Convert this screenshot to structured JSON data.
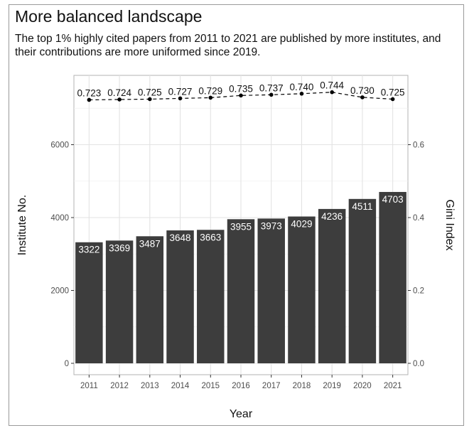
{
  "header": {
    "title": "More balanced landscape",
    "subtitle": "The top 1% highly cited papers from 2011 to 2021 are published by more institutes, and their contributions are more uniformed since 2019."
  },
  "chart_data": {
    "type": "bar",
    "title": "More balanced landscape",
    "subtitle": "The top 1% highly cited papers from 2011 to 2021 are published by more institutes, and their contributions are more uniformed since 2019.",
    "xlabel": "Year",
    "ylabel": "Institute No.",
    "y2label": "Gini Index",
    "categories": [
      "2011",
      "2012",
      "2013",
      "2014",
      "2015",
      "2016",
      "2017",
      "2018",
      "2019",
      "2020",
      "2021"
    ],
    "series": [
      {
        "type": "bar",
        "axis": "left",
        "values": [
          3322,
          3369,
          3487,
          3648,
          3663,
          3955,
          3973,
          4029,
          4236,
          4511,
          4703
        ],
        "labels": [
          "3322",
          "3369",
          "3487",
          "3648",
          "3663",
          "3955",
          "3973",
          "4029",
          "4236",
          "4511",
          "4703"
        ],
        "color": "#3d3d3d"
      },
      {
        "type": "line",
        "axis": "right",
        "style": "dashed",
        "values": [
          0.723,
          0.724,
          0.725,
          0.727,
          0.729,
          0.735,
          0.737,
          0.74,
          0.744,
          0.73,
          0.725
        ],
        "labels": [
          "0.723",
          "0.724",
          "0.725",
          "0.727",
          "0.729",
          "0.735",
          "0.737",
          "0.740",
          "0.744",
          "0.730",
          "0.725"
        ],
        "color": "#000000"
      }
    ],
    "ylim": [
      0,
      7600
    ],
    "y2lim": [
      0,
      0.76
    ],
    "yticks": [
      "0",
      "2000",
      "4000",
      "6000"
    ],
    "yticks_values": [
      0,
      2000,
      4000,
      6000
    ],
    "y2ticks": [
      "0.0",
      "0.2",
      "0.4",
      "0.6"
    ],
    "y2ticks_values": [
      0,
      0.2,
      0.4,
      0.6
    ],
    "grid": true,
    "legend": "none"
  }
}
